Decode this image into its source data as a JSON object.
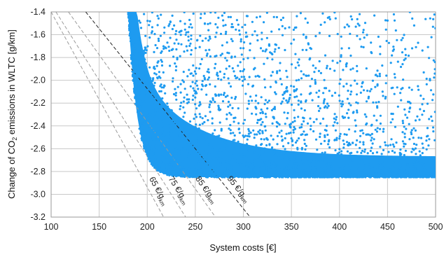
{
  "chart_data": {
    "type": "scatter",
    "xlabel": "System costs [€]",
    "ylabel_parts": [
      "Change of CO",
      "2",
      " emissions in WLTC [g/km]"
    ],
    "xlim": [
      100,
      500
    ],
    "ylim": [
      -3.2,
      -1.4
    ],
    "x_ticks": [
      100,
      150,
      200,
      250,
      300,
      350,
      400,
      450,
      500
    ],
    "y_ticks": [
      -3.2,
      -3.0,
      -2.8,
      -2.6,
      -2.4,
      -2.2,
      -2.0,
      -1.8,
      -1.6,
      -1.4
    ],
    "x_tick_labels": [
      "100",
      "150",
      "200",
      "250",
      "300",
      "350",
      "400",
      "450",
      "500"
    ],
    "y_tick_labels": [
      "-3.2",
      "-3.0",
      "-2.8",
      "-2.6",
      "-2.4",
      "-2.2",
      "-2.0",
      "-1.8",
      "-1.6",
      "-1.4"
    ],
    "grid": true,
    "point_color": "#1e9bf0",
    "point_cloud": {
      "description_hidden": false,
      "lower_bound_y": -2.85,
      "min_cost": 175,
      "max_cost": 500
    },
    "iso_cost_lines": [
      {
        "label": "65 €/g/km",
        "slope": 65,
        "style": "dashed",
        "color": "#9a9a9a",
        "x_at_top": 100,
        "y_top": -1.4
      },
      {
        "label": "75 €/g/km",
        "slope": 75,
        "style": "dashed",
        "color": "#9a9a9a",
        "x_at_top": 105,
        "y_top": -1.4
      },
      {
        "label": "85 €/g/km",
        "slope": 85,
        "style": "dashed",
        "color": "#9a9a9a",
        "x_at_top": 118,
        "y_top": -1.4
      },
      {
        "label": "95 €/g/km",
        "slope": 95,
        "style": "dashed",
        "color": "#222222",
        "x_at_top": 136,
        "y_top": -1.4
      }
    ],
    "line_labels": [
      {
        "value": "65 €/g",
        "sub": "km"
      },
      {
        "value": "75 €/g",
        "sub": "km"
      },
      {
        "value": "85 €/g",
        "sub": "km"
      },
      {
        "value": "95 €/g",
        "sub": "km"
      }
    ]
  }
}
